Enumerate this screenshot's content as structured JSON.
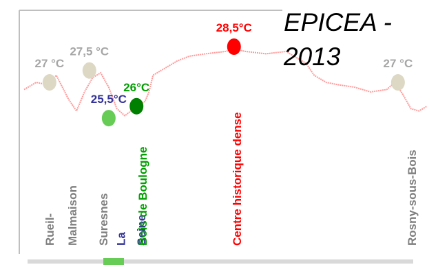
{
  "chart_data": {
    "type": "line",
    "title": "EPICEA - 2013",
    "xlim": [
      0,
      100
    ],
    "ylim": [
      25,
      29
    ],
    "series": [
      {
        "color": "#ff9999",
        "x": [
          0,
          3,
          6,
          8,
          11,
          13,
          15,
          17,
          19,
          21,
          23,
          25,
          28,
          30,
          31,
          32,
          35,
          38,
          41,
          45,
          50,
          52,
          55,
          60,
          65,
          68,
          70,
          72,
          75,
          78,
          82,
          86,
          90,
          92,
          94,
          96,
          98,
          100
        ],
        "values": [
          26.7,
          27.0,
          26.9,
          27.3,
          26.3,
          25.8,
          26.6,
          27.2,
          27.4,
          26.8,
          25.9,
          25.6,
          26.0,
          26.2,
          26.6,
          27.3,
          27.6,
          27.9,
          28.1,
          28.2,
          28.3,
          28.4,
          28.3,
          28.2,
          28.3,
          28.0,
          27.8,
          27.3,
          27.0,
          26.9,
          26.8,
          26.6,
          26.7,
          27.0,
          26.5,
          25.9,
          25.8,
          26.0
        ]
      }
    ],
    "markers": [
      {
        "x": 6.3,
        "value": 27,
        "value_label": "27 °C",
        "color": "#ddd8c4",
        "label_color": "#a6a6a6"
      },
      {
        "x": 16.2,
        "value": 27.5,
        "value_label": "27,5 °C",
        "color": "#ddd8c4",
        "label_color": "#a6a6a6"
      },
      {
        "x": 21,
        "value": 25.5,
        "value_label": "25,5°C",
        "color": "#66cc55",
        "label_color": "#333399"
      },
      {
        "x": 27.9,
        "value": 26,
        "value_label": "26°C",
        "color": "#008000",
        "label_color": "#00a000"
      },
      {
        "x": 52.1,
        "value": 28.5,
        "value_label": "28,5°C",
        "color": "#ff0000",
        "label_color": "#ff0000"
      },
      {
        "x": 92.8,
        "value": 27,
        "value_label": "27 °C",
        "color": "#ddd8c4",
        "label_color": "#a6a6a6"
      }
    ],
    "places": [
      {
        "label": "Rueil-",
        "x": 6.3,
        "color": "#7f7f7f"
      },
      {
        "label": "Malmaison",
        "x": 12,
        "color": "#7f7f7f"
      },
      {
        "label": "Suresnes",
        "x": 19.7,
        "color": "#7f7f7f"
      },
      {
        "label": "La",
        "x": 24,
        "color": "#333399"
      },
      {
        "label": "Seine",
        "x": 29.1,
        "color": "#333399"
      },
      {
        "label": "Bois de Boulogne",
        "x": 29.4,
        "color": "#00a000"
      },
      {
        "label": "Centre historique dense",
        "x": 52.8,
        "color": "#ff0000"
      },
      {
        "label": "Rosny-sous-Bois",
        "x": 96.2,
        "color": "#7f7f7f"
      }
    ]
  }
}
